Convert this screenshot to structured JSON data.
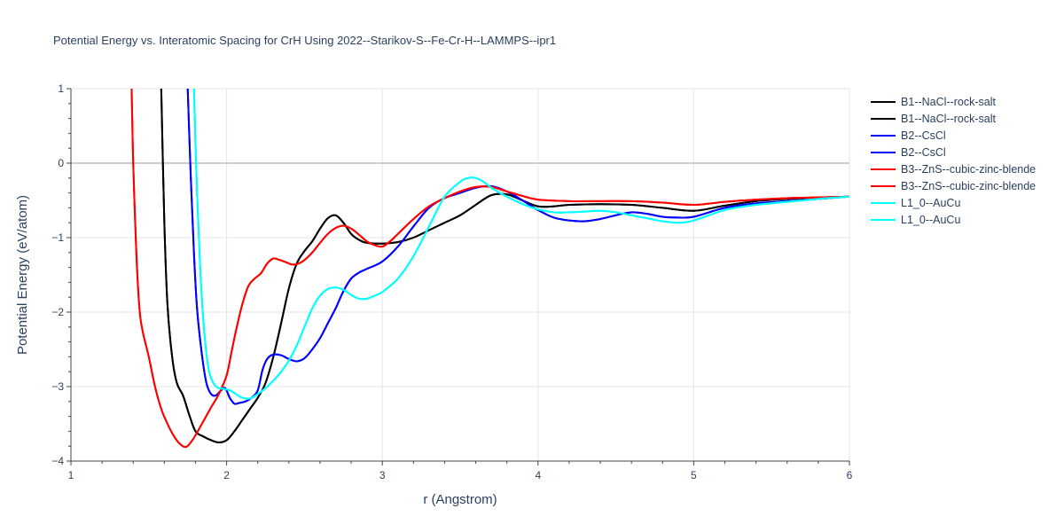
{
  "chart_data": {
    "type": "line",
    "title": "Potential Energy vs. Interatomic Spacing for CrH Using 2022--Starikov-S--Fe-Cr-H--LAMMPS--ipr1",
    "xlabel": "r (Angstrom)",
    "ylabel": "Potential Energy (eV/atom)",
    "xlim": [
      1,
      6
    ],
    "ylim": [
      -4,
      1
    ],
    "xticks": [
      1,
      2,
      3,
      4,
      5,
      6
    ],
    "yticks": [
      -4,
      -3,
      -2,
      -1,
      0,
      1
    ],
    "grid": true,
    "legend_position": "top-right",
    "series": [
      {
        "name": "B1--NaCl--rock-salt",
        "color": "#000000",
        "x": [
          1.58,
          1.6,
          1.62,
          1.65,
          1.68,
          1.72,
          1.76,
          1.8,
          1.85,
          1.9,
          1.95,
          2.0,
          2.05,
          2.1,
          2.15,
          2.2,
          2.25,
          2.3,
          2.35,
          2.4,
          2.45,
          2.5,
          2.55,
          2.6,
          2.65,
          2.7,
          2.75,
          2.8,
          2.85,
          2.9,
          3.0,
          3.1,
          3.2,
          3.3,
          3.4,
          3.5,
          3.6,
          3.7,
          3.8,
          3.9,
          4.0,
          4.1,
          4.2,
          4.4,
          4.6,
          4.8,
          5.0,
          5.2,
          5.4,
          5.6,
          5.8,
          6.0
        ],
        "y": [
          1.0,
          -0.8,
          -1.9,
          -2.6,
          -2.95,
          -3.12,
          -3.38,
          -3.6,
          -3.67,
          -3.72,
          -3.75,
          -3.72,
          -3.6,
          -3.45,
          -3.3,
          -3.15,
          -2.95,
          -2.6,
          -2.15,
          -1.68,
          -1.35,
          -1.18,
          -1.05,
          -0.88,
          -0.74,
          -0.7,
          -0.8,
          -0.95,
          -1.03,
          -1.07,
          -1.08,
          -1.06,
          -1.0,
          -0.9,
          -0.8,
          -0.7,
          -0.56,
          -0.43,
          -0.42,
          -0.5,
          -0.58,
          -0.58,
          -0.56,
          -0.55,
          -0.56,
          -0.6,
          -0.64,
          -0.57,
          -0.51,
          -0.48,
          -0.46,
          -0.45
        ]
      },
      {
        "name": "B1--NaCl--rock-salt",
        "color": "#000000",
        "x": [
          1.58,
          1.6,
          1.62,
          1.65,
          1.68,
          1.72,
          1.76,
          1.8,
          1.85,
          1.9,
          1.95,
          2.0,
          2.05,
          2.1,
          2.15,
          2.2,
          2.25,
          2.3,
          2.35,
          2.4,
          2.45,
          2.5,
          2.55,
          2.6,
          2.65,
          2.7,
          2.75,
          2.8,
          2.85,
          2.9,
          3.0,
          3.1,
          3.2,
          3.3,
          3.4,
          3.5,
          3.6,
          3.7,
          3.8,
          3.9,
          4.0,
          4.1,
          4.2,
          4.4,
          4.6,
          4.8,
          5.0,
          5.2,
          5.4,
          5.6,
          5.8,
          6.0
        ],
        "y": [
          1.0,
          -0.8,
          -1.9,
          -2.6,
          -2.95,
          -3.12,
          -3.38,
          -3.6,
          -3.67,
          -3.72,
          -3.75,
          -3.72,
          -3.6,
          -3.45,
          -3.3,
          -3.15,
          -2.95,
          -2.6,
          -2.15,
          -1.68,
          -1.35,
          -1.18,
          -1.05,
          -0.88,
          -0.74,
          -0.7,
          -0.8,
          -0.95,
          -1.03,
          -1.07,
          -1.08,
          -1.06,
          -1.0,
          -0.9,
          -0.8,
          -0.7,
          -0.56,
          -0.43,
          -0.42,
          -0.5,
          -0.58,
          -0.58,
          -0.56,
          -0.55,
          -0.56,
          -0.6,
          -0.64,
          -0.57,
          -0.51,
          -0.48,
          -0.46,
          -0.45
        ]
      },
      {
        "name": "B2--CsCl",
        "color": "#0000ff",
        "x": [
          1.75,
          1.77,
          1.79,
          1.81,
          1.84,
          1.87,
          1.9,
          1.93,
          1.96,
          1.99,
          2.02,
          2.05,
          2.08,
          2.12,
          2.16,
          2.2,
          2.23,
          2.26,
          2.3,
          2.35,
          2.4,
          2.45,
          2.5,
          2.55,
          2.6,
          2.65,
          2.7,
          2.75,
          2.8,
          2.85,
          2.9,
          3.0,
          3.1,
          3.2,
          3.3,
          3.4,
          3.5,
          3.6,
          3.7,
          3.8,
          3.9,
          4.0,
          4.1,
          4.2,
          4.3,
          4.4,
          4.5,
          4.6,
          4.7,
          4.8,
          4.9,
          5.0,
          5.2,
          5.4,
          5.6,
          5.8,
          6.0
        ],
        "y": [
          1.0,
          -0.2,
          -1.2,
          -1.95,
          -2.55,
          -2.95,
          -3.1,
          -3.12,
          -3.06,
          -3.02,
          -3.15,
          -3.23,
          -3.22,
          -3.2,
          -3.15,
          -3.05,
          -2.78,
          -2.63,
          -2.57,
          -2.58,
          -2.63,
          -2.66,
          -2.62,
          -2.5,
          -2.35,
          -2.15,
          -1.95,
          -1.72,
          -1.55,
          -1.47,
          -1.42,
          -1.32,
          -1.12,
          -0.85,
          -0.6,
          -0.47,
          -0.4,
          -0.33,
          -0.31,
          -0.38,
          -0.5,
          -0.63,
          -0.73,
          -0.77,
          -0.78,
          -0.75,
          -0.7,
          -0.66,
          -0.68,
          -0.72,
          -0.73,
          -0.72,
          -0.6,
          -0.54,
          -0.51,
          -0.48,
          -0.45
        ]
      },
      {
        "name": "B2--CsCl",
        "color": "#0000ff",
        "x": [
          1.75,
          1.77,
          1.79,
          1.81,
          1.84,
          1.87,
          1.9,
          1.93,
          1.96,
          1.99,
          2.02,
          2.05,
          2.08,
          2.12,
          2.16,
          2.2,
          2.23,
          2.26,
          2.3,
          2.35,
          2.4,
          2.45,
          2.5,
          2.55,
          2.6,
          2.65,
          2.7,
          2.75,
          2.8,
          2.85,
          2.9,
          3.0,
          3.1,
          3.2,
          3.3,
          3.4,
          3.5,
          3.6,
          3.7,
          3.8,
          3.9,
          4.0,
          4.1,
          4.2,
          4.3,
          4.4,
          4.5,
          4.6,
          4.7,
          4.8,
          4.9,
          5.0,
          5.2,
          5.4,
          5.6,
          5.8,
          6.0
        ],
        "y": [
          1.0,
          -0.2,
          -1.2,
          -1.95,
          -2.55,
          -2.95,
          -3.1,
          -3.12,
          -3.06,
          -3.02,
          -3.15,
          -3.23,
          -3.22,
          -3.2,
          -3.15,
          -3.05,
          -2.78,
          -2.63,
          -2.57,
          -2.58,
          -2.63,
          -2.66,
          -2.62,
          -2.5,
          -2.35,
          -2.15,
          -1.95,
          -1.72,
          -1.55,
          -1.47,
          -1.42,
          -1.32,
          -1.12,
          -0.85,
          -0.6,
          -0.47,
          -0.4,
          -0.33,
          -0.31,
          -0.38,
          -0.5,
          -0.63,
          -0.73,
          -0.77,
          -0.78,
          -0.75,
          -0.7,
          -0.66,
          -0.68,
          -0.72,
          -0.73,
          -0.72,
          -0.6,
          -0.54,
          -0.51,
          -0.48,
          -0.45
        ]
      },
      {
        "name": "B3--ZnS--cubic-zinc-blende",
        "color": "#ff0000",
        "x": [
          1.39,
          1.4,
          1.42,
          1.44,
          1.46,
          1.5,
          1.54,
          1.58,
          1.62,
          1.66,
          1.7,
          1.74,
          1.78,
          1.82,
          1.86,
          1.9,
          1.95,
          2.0,
          2.03,
          2.06,
          2.1,
          2.14,
          2.18,
          2.22,
          2.26,
          2.3,
          2.34,
          2.38,
          2.42,
          2.46,
          2.5,
          2.55,
          2.6,
          2.65,
          2.7,
          2.75,
          2.8,
          2.85,
          2.9,
          2.95,
          3.0,
          3.05,
          3.1,
          3.2,
          3.3,
          3.4,
          3.5,
          3.6,
          3.7,
          3.8,
          3.9,
          4.0,
          4.2,
          4.4,
          4.6,
          4.8,
          5.0,
          5.2,
          5.4,
          5.6,
          5.8,
          6.0
        ],
        "y": [
          1.0,
          0.0,
          -1.2,
          -1.95,
          -2.25,
          -2.6,
          -3.0,
          -3.3,
          -3.5,
          -3.66,
          -3.77,
          -3.81,
          -3.72,
          -3.58,
          -3.43,
          -3.28,
          -3.1,
          -2.85,
          -2.55,
          -2.25,
          -1.9,
          -1.65,
          -1.55,
          -1.48,
          -1.35,
          -1.28,
          -1.3,
          -1.33,
          -1.36,
          -1.35,
          -1.3,
          -1.2,
          -1.07,
          -0.95,
          -0.87,
          -0.84,
          -0.88,
          -0.96,
          -1.05,
          -1.1,
          -1.12,
          -1.05,
          -0.95,
          -0.75,
          -0.58,
          -0.47,
          -0.38,
          -0.32,
          -0.32,
          -0.38,
          -0.44,
          -0.49,
          -0.51,
          -0.51,
          -0.51,
          -0.53,
          -0.56,
          -0.52,
          -0.49,
          -0.47,
          -0.46,
          -0.45
        ]
      },
      {
        "name": "B3--ZnS--cubic-zinc-blende",
        "color": "#ff0000",
        "x": [
          1.39,
          1.4,
          1.42,
          1.44,
          1.46,
          1.5,
          1.54,
          1.58,
          1.62,
          1.66,
          1.7,
          1.74,
          1.78,
          1.82,
          1.86,
          1.9,
          1.95,
          2.0,
          2.03,
          2.06,
          2.1,
          2.14,
          2.18,
          2.22,
          2.26,
          2.3,
          2.34,
          2.38,
          2.42,
          2.46,
          2.5,
          2.55,
          2.6,
          2.65,
          2.7,
          2.75,
          2.8,
          2.85,
          2.9,
          2.95,
          3.0,
          3.05,
          3.1,
          3.2,
          3.3,
          3.4,
          3.5,
          3.6,
          3.7,
          3.8,
          3.9,
          4.0,
          4.2,
          4.4,
          4.6,
          4.8,
          5.0,
          5.2,
          5.4,
          5.6,
          5.8,
          6.0
        ],
        "y": [
          1.0,
          0.0,
          -1.2,
          -1.95,
          -2.25,
          -2.6,
          -3.0,
          -3.3,
          -3.5,
          -3.66,
          -3.77,
          -3.81,
          -3.72,
          -3.58,
          -3.43,
          -3.28,
          -3.1,
          -2.85,
          -2.55,
          -2.25,
          -1.9,
          -1.65,
          -1.55,
          -1.48,
          -1.35,
          -1.28,
          -1.3,
          -1.33,
          -1.36,
          -1.35,
          -1.3,
          -1.2,
          -1.07,
          -0.95,
          -0.87,
          -0.84,
          -0.88,
          -0.96,
          -1.05,
          -1.1,
          -1.12,
          -1.05,
          -0.95,
          -0.75,
          -0.58,
          -0.47,
          -0.38,
          -0.32,
          -0.32,
          -0.38,
          -0.44,
          -0.49,
          -0.51,
          -0.51,
          -0.51,
          -0.53,
          -0.56,
          -0.52,
          -0.49,
          -0.47,
          -0.46,
          -0.45
        ]
      },
      {
        "name": "L1_0--AuCu",
        "color": "#00ffff",
        "x": [
          1.79,
          1.81,
          1.83,
          1.85,
          1.87,
          1.89,
          1.92,
          1.95,
          1.98,
          2.02,
          2.06,
          2.1,
          2.15,
          2.2,
          2.25,
          2.3,
          2.35,
          2.4,
          2.45,
          2.5,
          2.55,
          2.6,
          2.65,
          2.7,
          2.75,
          2.8,
          2.85,
          2.9,
          2.95,
          3.0,
          3.1,
          3.2,
          3.3,
          3.4,
          3.5,
          3.55,
          3.6,
          3.65,
          3.7,
          3.8,
          3.9,
          4.0,
          4.1,
          4.2,
          4.3,
          4.4,
          4.5,
          4.6,
          4.7,
          4.8,
          4.9,
          5.0,
          5.2,
          5.4,
          5.6,
          5.8,
          6.0
        ],
        "y": [
          1.0,
          -0.4,
          -1.4,
          -2.1,
          -2.55,
          -2.82,
          -2.97,
          -3.02,
          -3.03,
          -3.05,
          -3.1,
          -3.15,
          -3.16,
          -3.1,
          -3.02,
          -2.92,
          -2.8,
          -2.65,
          -2.45,
          -2.2,
          -1.95,
          -1.78,
          -1.69,
          -1.67,
          -1.7,
          -1.77,
          -1.82,
          -1.82,
          -1.78,
          -1.73,
          -1.55,
          -1.25,
          -0.85,
          -0.45,
          -0.25,
          -0.2,
          -0.2,
          -0.25,
          -0.33,
          -0.45,
          -0.55,
          -0.62,
          -0.66,
          -0.66,
          -0.65,
          -0.64,
          -0.66,
          -0.7,
          -0.74,
          -0.78,
          -0.8,
          -0.77,
          -0.63,
          -0.56,
          -0.52,
          -0.48,
          -0.45
        ]
      },
      {
        "name": "L1_0--AuCu",
        "color": "#00ffff",
        "x": [
          1.79,
          1.81,
          1.83,
          1.85,
          1.87,
          1.89,
          1.92,
          1.95,
          1.98,
          2.02,
          2.06,
          2.1,
          2.15,
          2.2,
          2.25,
          2.3,
          2.35,
          2.4,
          2.45,
          2.5,
          2.55,
          2.6,
          2.65,
          2.7,
          2.75,
          2.8,
          2.85,
          2.9,
          2.95,
          3.0,
          3.1,
          3.2,
          3.3,
          3.4,
          3.5,
          3.55,
          3.6,
          3.65,
          3.7,
          3.8,
          3.9,
          4.0,
          4.1,
          4.2,
          4.3,
          4.4,
          4.5,
          4.6,
          4.7,
          4.8,
          4.9,
          5.0,
          5.2,
          5.4,
          5.6,
          5.8,
          6.0
        ],
        "y": [
          1.0,
          -0.4,
          -1.4,
          -2.1,
          -2.55,
          -2.82,
          -2.97,
          -3.02,
          -3.03,
          -3.05,
          -3.1,
          -3.15,
          -3.16,
          -3.1,
          -3.02,
          -2.92,
          -2.8,
          -2.65,
          -2.45,
          -2.2,
          -1.95,
          -1.78,
          -1.69,
          -1.67,
          -1.7,
          -1.77,
          -1.82,
          -1.82,
          -1.78,
          -1.73,
          -1.55,
          -1.25,
          -0.85,
          -0.45,
          -0.25,
          -0.2,
          -0.2,
          -0.25,
          -0.33,
          -0.45,
          -0.55,
          -0.62,
          -0.66,
          -0.66,
          -0.65,
          -0.64,
          -0.66,
          -0.7,
          -0.74,
          -0.78,
          -0.8,
          -0.77,
          -0.63,
          -0.56,
          -0.52,
          -0.48,
          -0.45
        ]
      }
    ]
  }
}
